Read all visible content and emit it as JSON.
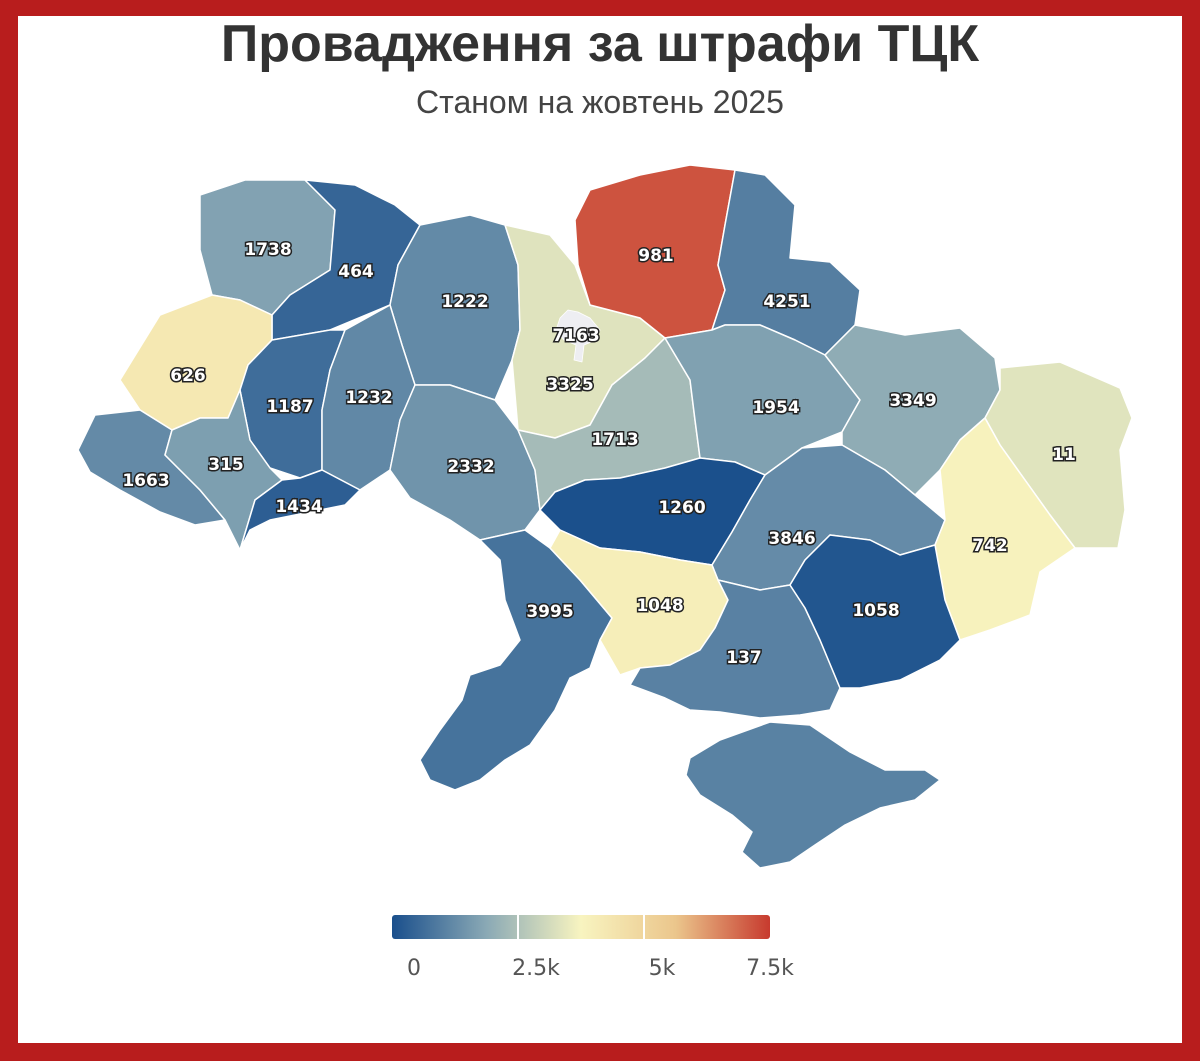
{
  "title": "Провадження за штрафи ТЦК",
  "subtitle": "Станом на жовтень 2025",
  "legend": {
    "min": 0,
    "max": 7500,
    "stops": [
      "#1a4f8c",
      "#8aa9b5",
      "#f8f4c0",
      "#ebc68c",
      "#c73a2e"
    ],
    "tick_labels": [
      "0",
      "2.5k",
      "5k",
      "7.5k"
    ],
    "tick_values": [
      0,
      2500,
      5000,
      7500
    ]
  },
  "no_data_color": "#eeeef2",
  "regions": [
    {
      "name": "Волинська",
      "value": "1738"
    },
    {
      "name": "Рівненська",
      "value": "464"
    },
    {
      "name": "Житомирська",
      "value": "1222"
    },
    {
      "name": "Київська",
      "value": "3325"
    },
    {
      "name": "м. Київ",
      "value": "7163"
    },
    {
      "name": "Чернігівська",
      "value": "981"
    },
    {
      "name": "Сумська",
      "value": "4251"
    },
    {
      "name": "Львівська",
      "value": "626"
    },
    {
      "name": "Тернопільська",
      "value": "1187"
    },
    {
      "name": "Хмельницька",
      "value": "1232"
    },
    {
      "name": "Закарпатська",
      "value": "1663"
    },
    {
      "name": "Івано-Франківська",
      "value": "315"
    },
    {
      "name": "Чернівецька",
      "value": "1434"
    },
    {
      "name": "Вінницька",
      "value": "2332"
    },
    {
      "name": "Черкаська",
      "value": "1713"
    },
    {
      "name": "Полтавська",
      "value": "1954"
    },
    {
      "name": "Харківська",
      "value": "3349"
    },
    {
      "name": "Луганська",
      "value": "11"
    },
    {
      "name": "Кіровоградська",
      "value": "1260"
    },
    {
      "name": "Дніпропетровська",
      "value": "3846"
    },
    {
      "name": "Донецька",
      "value": "742"
    },
    {
      "name": "Одеська",
      "value": "3995"
    },
    {
      "name": "Миколаївська",
      "value": "1048"
    },
    {
      "name": "Херсонська",
      "value": "137"
    },
    {
      "name": "Запорізька",
      "value": "1058"
    },
    {
      "name": "АР Крим",
      "value": ""
    }
  ]
}
